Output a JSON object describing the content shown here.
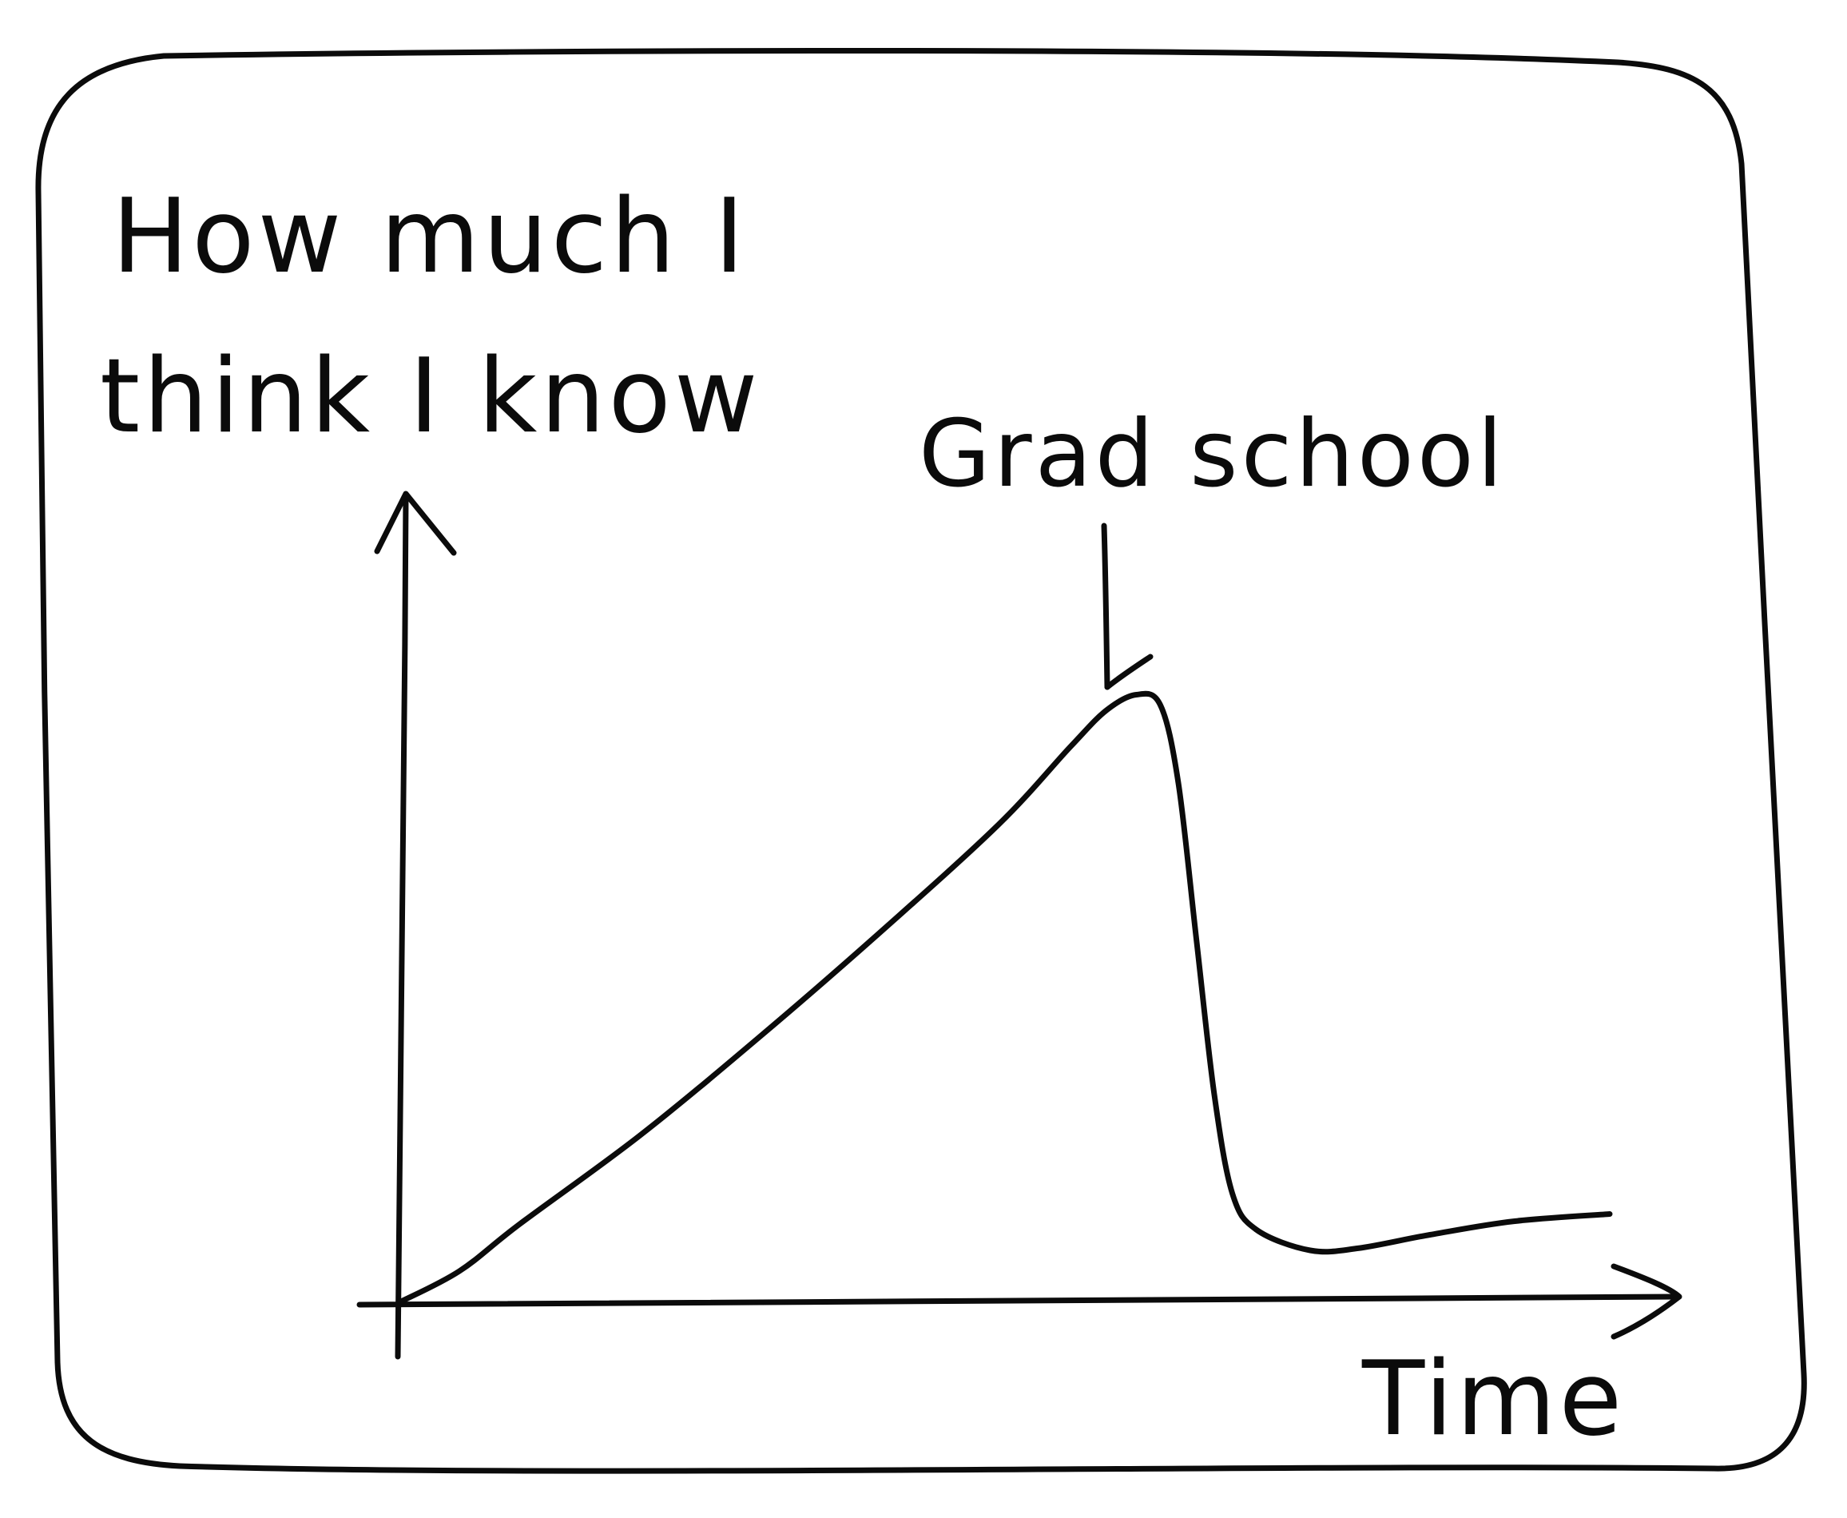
{
  "colors": {
    "ink": "#0b0b0b",
    "paper": "#ffffff"
  },
  "chart_data": {
    "type": "line",
    "style": "hand-drawn sketch inside a rounded frame",
    "ylabel_lines": [
      "How much I",
      "think I know"
    ],
    "xlabel": "Time",
    "annotations": [
      {
        "text": "Grad school",
        "x": 6.3,
        "y": 6.7,
        "arrow": "down"
      }
    ],
    "xlim": [
      0,
      11
    ],
    "ylim": [
      0,
      9.5
    ],
    "axis_ticks": "none",
    "grid": false,
    "legend": "none",
    "series": [
      {
        "points": [
          {
            "x": 0.0,
            "y": 0.0
          },
          {
            "x": 0.5,
            "y": 0.3
          },
          {
            "x": 1.0,
            "y": 0.75
          },
          {
            "x": 2.0,
            "y": 1.6
          },
          {
            "x": 3.0,
            "y": 2.55
          },
          {
            "x": 4.0,
            "y": 3.55
          },
          {
            "x": 5.0,
            "y": 4.6
          },
          {
            "x": 5.6,
            "y": 5.35
          },
          {
            "x": 5.9,
            "y": 5.7
          },
          {
            "x": 6.15,
            "y": 5.85
          },
          {
            "x": 6.35,
            "y": 5.75
          },
          {
            "x": 6.5,
            "y": 5.0
          },
          {
            "x": 6.65,
            "y": 3.5
          },
          {
            "x": 6.8,
            "y": 2.0
          },
          {
            "x": 6.95,
            "y": 1.05
          },
          {
            "x": 7.15,
            "y": 0.7
          },
          {
            "x": 7.6,
            "y": 0.5
          },
          {
            "x": 8.0,
            "y": 0.52
          },
          {
            "x": 8.6,
            "y": 0.65
          },
          {
            "x": 9.3,
            "y": 0.78
          },
          {
            "x": 10.1,
            "y": 0.85
          }
        ]
      }
    ]
  }
}
